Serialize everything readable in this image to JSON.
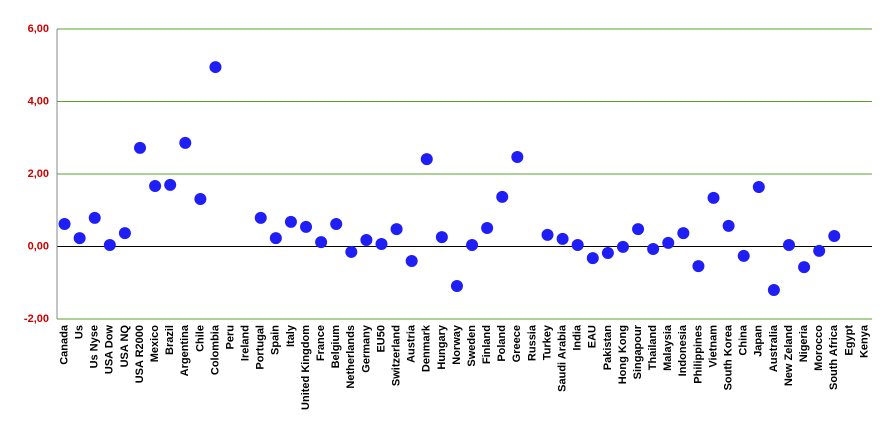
{
  "chart_data": {
    "type": "scatter",
    "categories": [
      "Canada",
      "Us",
      "Us Nyse",
      "USA Dow",
      "USA NQ",
      "USA R2000",
      "Mexico",
      "Brazil",
      "Argentina",
      "Chile",
      "Colombia",
      "Peru",
      "Ireland",
      "Portugal",
      "Spain",
      "Italy",
      "United Kingdom",
      "France",
      "Belgium",
      "Netherlands",
      "Germany",
      "EU50",
      "Switzerland",
      "Austria",
      "Denmark",
      "Hungary",
      "Norway",
      "Sweden",
      "Finland",
      "Poland",
      "Greece",
      "Russia",
      "Turkey",
      "Saudi Arabia",
      "India",
      "EAU",
      "Pakistan",
      "Hong Kong",
      "Singapour",
      "Thailand",
      "Malaysia",
      "Indonesia",
      "Philippines",
      "Vietnam",
      "South Korea",
      "China",
      "Japan",
      "Australia",
      "New Zeland",
      "Nigeria",
      "Morocco",
      "South Africa",
      "Egypt",
      "Kenya"
    ],
    "values": [
      0.62,
      0.23,
      0.79,
      0.04,
      0.37,
      2.72,
      1.67,
      1.7,
      2.86,
      1.31,
      4.95,
      null,
      null,
      0.79,
      0.23,
      0.68,
      0.54,
      0.12,
      0.62,
      -0.15,
      0.18,
      0.07,
      0.48,
      -0.4,
      2.41,
      0.26,
      -1.09,
      0.04,
      0.51,
      1.37,
      2.47,
      null,
      0.32,
      0.21,
      0.04,
      -0.32,
      -0.18,
      -0.01,
      0.48,
      -0.07,
      0.1,
      0.37,
      -0.54,
      1.34,
      0.57,
      -0.26,
      1.64,
      -1.2,
      0.04,
      -0.57,
      -0.12,
      0.29,
      null,
      null
    ],
    "color": "#1f1ff5",
    "ylim": [
      -2,
      6
    ],
    "yticks": [
      {
        "value": -2,
        "label": "-2,00"
      },
      {
        "value": 0,
        "label": "0,00"
      },
      {
        "value": 2,
        "label": "2,00"
      },
      {
        "value": 4,
        "label": "4,00"
      },
      {
        "value": 6,
        "label": "6,00"
      }
    ],
    "grid": true,
    "grid_color": "#5aa02c",
    "tick_label_color": "#cc0000"
  }
}
